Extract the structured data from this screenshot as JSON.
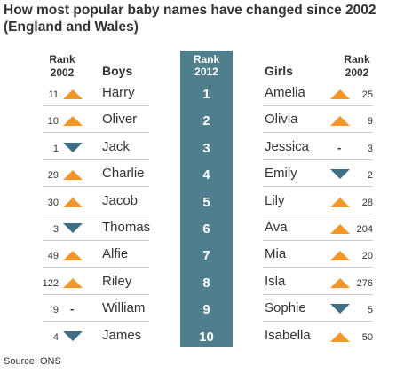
{
  "title": "How most popular baby names have changed since 2002 (England and Wales)",
  "source": "Source: ONS",
  "headers": {
    "rank_prev": "Rank\n2002",
    "rank_center": "Rank\n2012",
    "boys": "Boys",
    "girls": "Girls"
  },
  "colors": {
    "up": "#f0962a",
    "down": "#3d6e86",
    "center": "#4f7f8d"
  },
  "chart_data": {
    "type": "table",
    "title": "How most popular baby names have changed since 2002 (England and Wales)",
    "columns": [
      "Rank 2002",
      "Boys",
      "Rank 2012",
      "Girls",
      "Rank 2002"
    ],
    "rank_2012": [
      1,
      2,
      3,
      4,
      5,
      6,
      7,
      8,
      9,
      10
    ],
    "boys": [
      {
        "name": "Harry",
        "rank_2002": 11,
        "change": "up"
      },
      {
        "name": "Oliver",
        "rank_2002": 10,
        "change": "up"
      },
      {
        "name": "Jack",
        "rank_2002": 1,
        "change": "down"
      },
      {
        "name": "Charlie",
        "rank_2002": 29,
        "change": "up"
      },
      {
        "name": "Jacob",
        "rank_2002": 30,
        "change": "up"
      },
      {
        "name": "Thomas",
        "rank_2002": 3,
        "change": "down"
      },
      {
        "name": "Alfie",
        "rank_2002": 49,
        "change": "up"
      },
      {
        "name": "Riley",
        "rank_2002": 122,
        "change": "up"
      },
      {
        "name": "William",
        "rank_2002": 9,
        "change": "same"
      },
      {
        "name": "James",
        "rank_2002": 4,
        "change": "down"
      }
    ],
    "girls": [
      {
        "name": "Amelia",
        "rank_2002": 25,
        "change": "up"
      },
      {
        "name": "Olivia",
        "rank_2002": 9,
        "change": "up"
      },
      {
        "name": "Jessica",
        "rank_2002": 3,
        "change": "same"
      },
      {
        "name": "Emily",
        "rank_2002": 2,
        "change": "down"
      },
      {
        "name": "Lily",
        "rank_2002": 28,
        "change": "up"
      },
      {
        "name": "Ava",
        "rank_2002": 204,
        "change": "up"
      },
      {
        "name": "Mia",
        "rank_2002": 20,
        "change": "up"
      },
      {
        "name": "Isla",
        "rank_2002": 276,
        "change": "up"
      },
      {
        "name": "Sophie",
        "rank_2002": 5,
        "change": "down"
      },
      {
        "name": "Isabella",
        "rank_2002": 50,
        "change": "up"
      }
    ]
  }
}
